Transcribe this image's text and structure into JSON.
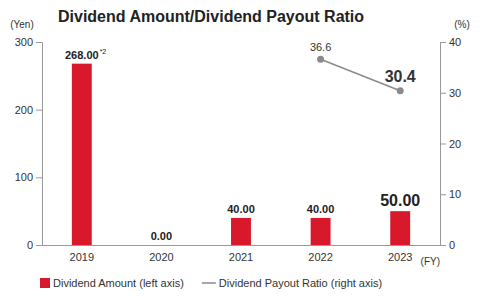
{
  "chart_data": {
    "type": "bar",
    "title": "Dividend Amount/Dividend Payout Ratio",
    "y_label": "(Yen)",
    "y2_label": "(%)",
    "x_label": "(FY)",
    "categories": [
      "2019",
      "2020",
      "2021",
      "2022",
      "2023"
    ],
    "series": [
      {
        "name": "Dividend Amount (left axis)",
        "type": "bar",
        "color": "#d7192b",
        "values": [
          268,
          0,
          40,
          40,
          50
        ],
        "value_labels": [
          "268.00",
          "0.00",
          "40.00",
          "40.00",
          "50.00"
        ]
      },
      {
        "name": "Dividend Payout Ratio (right axis)",
        "type": "line",
        "axis": "y2",
        "color": "#8a8a8a",
        "marker": "circle",
        "line_style": "solid",
        "values": [
          null,
          null,
          null,
          36.6,
          30.4
        ]
      }
    ],
    "annotations": [
      {
        "text": "*2",
        "x": "2019"
      }
    ],
    "ylim": [
      0,
      300
    ],
    "yticks": [
      0,
      100,
      200,
      300
    ],
    "y2lim": [
      0,
      40
    ],
    "y2ticks": [
      0,
      10,
      20,
      30,
      40
    ],
    "data_labels": true,
    "legend": "bottom"
  }
}
